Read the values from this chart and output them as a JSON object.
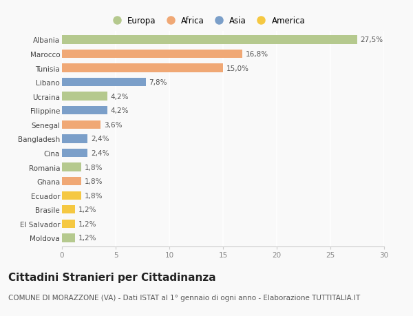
{
  "countries": [
    "Albania",
    "Marocco",
    "Tunisia",
    "Libano",
    "Ucraina",
    "Filippine",
    "Senegal",
    "Bangladesh",
    "Cina",
    "Romania",
    "Ghana",
    "Ecuador",
    "Brasile",
    "El Salvador",
    "Moldova"
  ],
  "values": [
    27.5,
    16.8,
    15.0,
    7.8,
    4.2,
    4.2,
    3.6,
    2.4,
    2.4,
    1.8,
    1.8,
    1.8,
    1.2,
    1.2,
    1.2
  ],
  "labels": [
    "27,5%",
    "16,8%",
    "15,0%",
    "7,8%",
    "4,2%",
    "4,2%",
    "3,6%",
    "2,4%",
    "2,4%",
    "1,8%",
    "1,8%",
    "1,8%",
    "1,2%",
    "1,2%",
    "1,2%"
  ],
  "continents": [
    "Europa",
    "Africa",
    "Africa",
    "Asia",
    "Europa",
    "Asia",
    "Africa",
    "Asia",
    "Asia",
    "Europa",
    "Africa",
    "America",
    "America",
    "America",
    "Europa"
  ],
  "colors": {
    "Europa": "#b5c98e",
    "Africa": "#f0a875",
    "Asia": "#7b9fc9",
    "America": "#f5c842"
  },
  "legend_order": [
    "Europa",
    "Africa",
    "Asia",
    "America"
  ],
  "xlim": [
    0,
    30
  ],
  "xticks": [
    0,
    5,
    10,
    15,
    20,
    25,
    30
  ],
  "title": "Cittadini Stranieri per Cittadinanza",
  "subtitle": "COMUNE DI MORAZZONE (VA) - Dati ISTAT al 1° gennaio di ogni anno - Elaborazione TUTTITALIA.IT",
  "bg_color": "#f9f9f9",
  "bar_height": 0.6,
  "title_fontsize": 11,
  "subtitle_fontsize": 7.5,
  "label_fontsize": 7.5,
  "tick_fontsize": 7.5,
  "legend_fontsize": 8.5
}
